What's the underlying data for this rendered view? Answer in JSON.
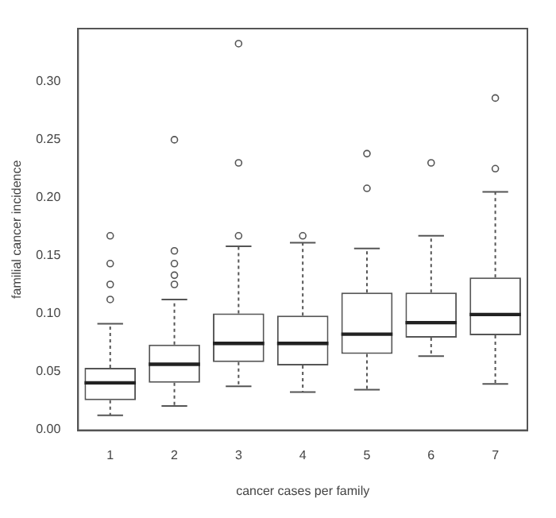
{
  "chart_data": {
    "type": "box",
    "xlabel": "cancer cases per family",
    "ylabel": "familial cancer incidence",
    "categories": [
      "1",
      "2",
      "3",
      "4",
      "5",
      "6",
      "7"
    ],
    "boxes": [
      {
        "low": 0.012,
        "q1": 0.025,
        "median": 0.04,
        "q3": 0.053,
        "high": 0.091,
        "outliers": [
          0.167,
          0.143,
          0.125,
          0.112
        ]
      },
      {
        "low": 0.02,
        "q1": 0.04,
        "median": 0.056,
        "q3": 0.073,
        "high": 0.112,
        "outliers": [
          0.25,
          0.154,
          0.143,
          0.133,
          0.125
        ]
      },
      {
        "low": 0.037,
        "q1": 0.058,
        "median": 0.074,
        "q3": 0.1,
        "high": 0.158,
        "outliers": [
          0.333,
          0.23,
          0.167
        ]
      },
      {
        "low": 0.032,
        "q1": 0.055,
        "median": 0.074,
        "q3": 0.098,
        "high": 0.161,
        "outliers": [
          0.167
        ]
      },
      {
        "low": 0.034,
        "q1": 0.065,
        "median": 0.082,
        "q3": 0.118,
        "high": 0.156,
        "outliers": [
          0.238,
          0.208
        ]
      },
      {
        "low": 0.063,
        "q1": 0.079,
        "median": 0.092,
        "q3": 0.118,
        "high": 0.167,
        "outliers": [
          0.23
        ]
      },
      {
        "low": 0.039,
        "q1": 0.081,
        "median": 0.099,
        "q3": 0.131,
        "high": 0.205,
        "outliers": [
          0.286,
          0.225
        ]
      }
    ],
    "color": "#555555",
    "ylim": [
      -0.001,
      0.346
    ],
    "yticks": [
      {
        "value": 0,
        "label": "0.00"
      },
      {
        "value": 0.05,
        "label": "0.05"
      },
      {
        "value": 0.1,
        "label": "0.10"
      },
      {
        "value": 0.15,
        "label": "0.15"
      },
      {
        "value": 0.2,
        "label": "0.20"
      },
      {
        "value": 0.25,
        "label": "0.25"
      },
      {
        "value": 0.3,
        "label": "0.30"
      }
    ],
    "grid": false,
    "legend": false,
    "marker": "circle"
  }
}
